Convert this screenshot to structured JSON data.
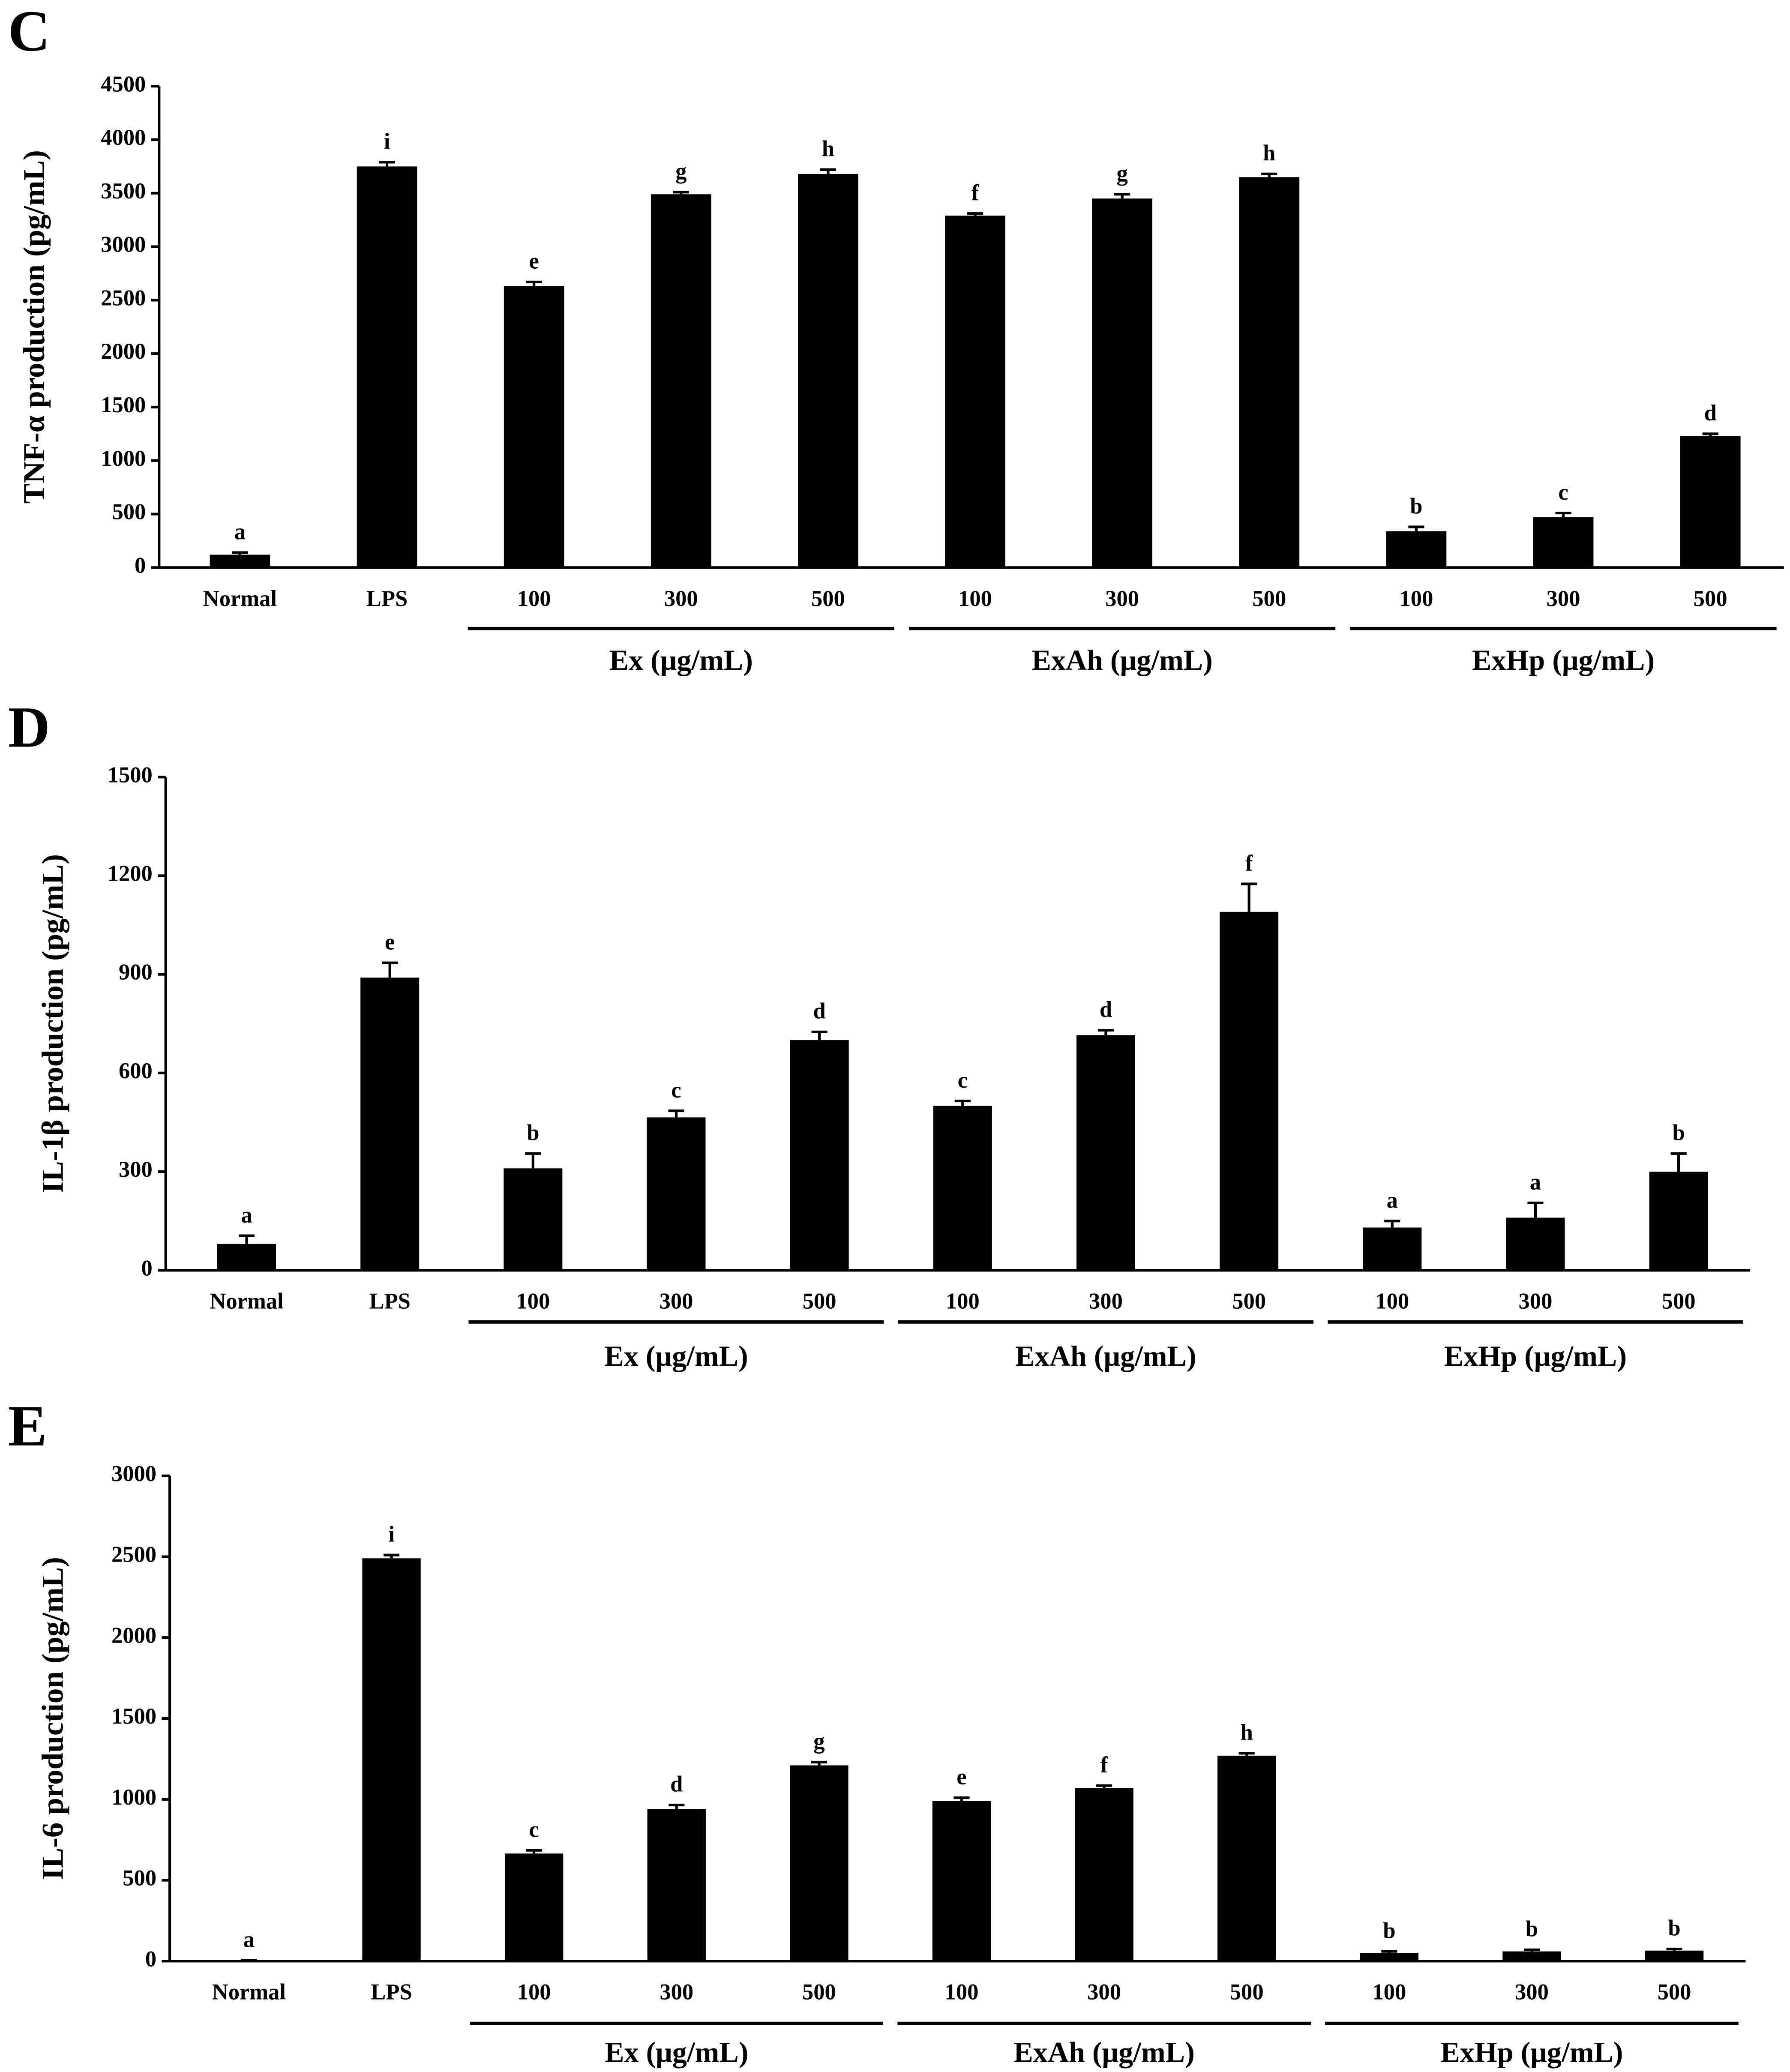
{
  "chart_data": [
    {
      "type": "bar",
      "panel_label": "C",
      "y_label": "TNF-α production (pg/mL)",
      "categories": [
        "Normal",
        "LPS",
        "100",
        "300",
        "500",
        "100",
        "300",
        "500",
        "100",
        "300",
        "500"
      ],
      "groups": [
        "Ex (μg/mL)",
        "ExAh (μg/mL)",
        "ExHp (μg/mL)"
      ],
      "values": [
        120,
        3750,
        2630,
        3490,
        3680,
        3290,
        3450,
        3650,
        340,
        470,
        1230
      ],
      "errors": [
        20,
        40,
        40,
        20,
        40,
        20,
        40,
        30,
        40,
        40,
        20
      ],
      "annotations": [
        "a",
        "i",
        "e",
        "g",
        "h",
        "f",
        "g",
        "h",
        "b",
        "c",
        "d"
      ],
      "color": "#000000",
      "ylim": [
        0,
        4500
      ],
      "yticks": [
        0,
        500,
        1000,
        1500,
        2000,
        2500,
        3000,
        3500,
        4000,
        4500
      ]
    },
    {
      "type": "bar",
      "panel_label": "D",
      "y_label": "IL-1β production (pg/mL)",
      "categories": [
        "Normal",
        "LPS",
        "100",
        "300",
        "500",
        "100",
        "300",
        "500",
        "100",
        "300",
        "500"
      ],
      "groups": [
        "Ex (μg/mL)",
        "ExAh (μg/mL)",
        "ExHp (μg/mL)"
      ],
      "values": [
        80,
        890,
        310,
        465,
        700,
        500,
        715,
        1090,
        130,
        160,
        300
      ],
      "errors": [
        25,
        45,
        45,
        20,
        25,
        15,
        15,
        85,
        20,
        45,
        55
      ],
      "annotations": [
        "a",
        "e",
        "b",
        "c",
        "d",
        "c",
        "d",
        "f",
        "a",
        "a",
        "b"
      ],
      "color": "#000000",
      "ylim": [
        0,
        1500
      ],
      "yticks": [
        0,
        300,
        600,
        900,
        1200,
        1500
      ]
    },
    {
      "type": "bar",
      "panel_label": "E",
      "y_label": "IL-6 production (pg/mL)",
      "categories": [
        "Normal",
        "LPS",
        "100",
        "300",
        "500",
        "100",
        "300",
        "500",
        "100",
        "300",
        "500"
      ],
      "groups": [
        "Ex (μg/mL)",
        "ExAh (μg/mL)",
        "ExHp (μg/mL)"
      ],
      "values": [
        5,
        2490,
        665,
        940,
        1210,
        990,
        1070,
        1270,
        50,
        60,
        65
      ],
      "errors": [
        0,
        20,
        20,
        25,
        20,
        20,
        15,
        15,
        10,
        10,
        10
      ],
      "annotations": [
        "a",
        "i",
        "c",
        "d",
        "g",
        "e",
        "f",
        "h",
        "b",
        "b",
        "b"
      ],
      "color": "#000000",
      "ylim": [
        0,
        3000
      ],
      "yticks": [
        0,
        500,
        1000,
        1500,
        2000,
        2500,
        3000
      ]
    }
  ]
}
